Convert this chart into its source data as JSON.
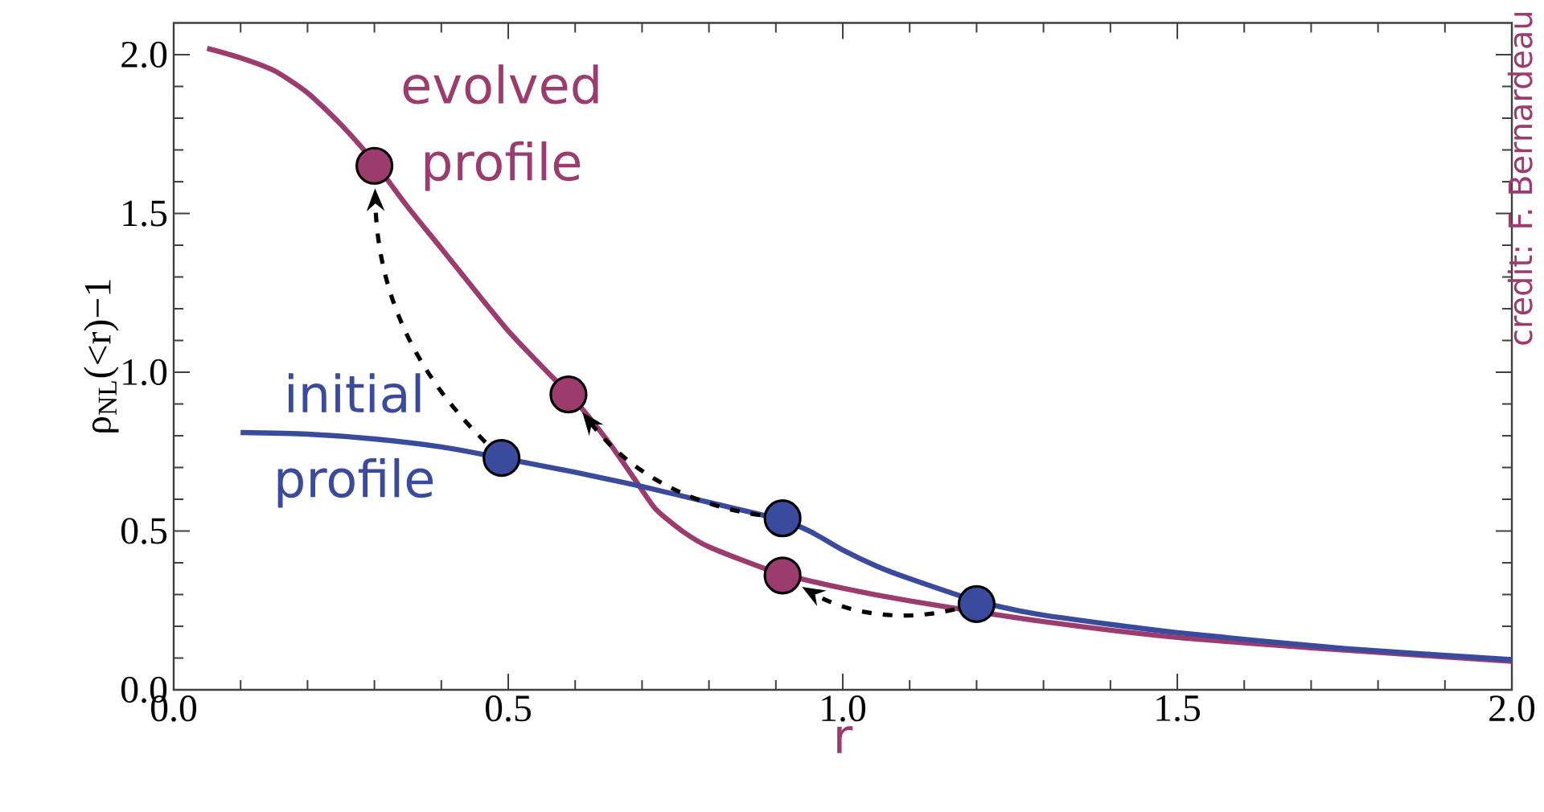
{
  "chart_data": {
    "type": "line",
    "ylabel": "ρ$_{NL}$(<r)−1",
    "xlabel": "r",
    "xlim": [
      0,
      2
    ],
    "ylim": [
      0,
      2.1
    ],
    "xticks": [
      {
        "value": 0,
        "label": "0.0"
      },
      {
        "value": 0.5,
        "label": "0.5"
      },
      {
        "value": 1,
        "label": "1.0"
      },
      {
        "value": 1.5,
        "label": "1.5"
      },
      {
        "value": 2,
        "label": "2.0"
      }
    ],
    "yticks": [
      {
        "value": 0,
        "label": "0.0"
      },
      {
        "value": 0.5,
        "label": "0.5"
      },
      {
        "value": 1,
        "label": "1.0"
      },
      {
        "value": 1.5,
        "label": "1.5"
      },
      {
        "value": 2,
        "label": "2.0"
      }
    ],
    "annotations": [
      "credit: F. Bernardeau"
    ],
    "series": [
      {
        "name": "evolved profile",
        "color": "#9b3b6e",
        "marker": "none",
        "x": [
          0.05,
          0.1,
          0.15,
          0.2,
          0.25,
          0.3,
          0.35,
          0.4,
          0.5,
          0.6,
          0.65,
          0.69,
          0.72,
          0.76,
          0.8,
          0.9,
          1.0,
          1.1,
          1.3,
          1.5,
          1.75,
          2.0
        ],
        "values": [
          2.02,
          1.99,
          1.95,
          1.88,
          1.78,
          1.66,
          1.52,
          1.39,
          1.13,
          0.91,
          0.78,
          0.66,
          0.57,
          0.5,
          0.45,
          0.37,
          0.32,
          0.28,
          0.215,
          0.165,
          0.125,
          0.09
        ]
      },
      {
        "name": "initial profile",
        "color": "#3a4a9c",
        "marker": "none",
        "x": [
          0.1,
          0.2,
          0.3,
          0.4,
          0.49,
          0.6,
          0.7,
          0.8,
          0.9,
          0.95,
          1.0,
          1.05,
          1.1,
          1.2,
          1.3,
          1.5,
          1.75,
          2.0
        ],
        "values": [
          0.81,
          0.805,
          0.79,
          0.765,
          0.73,
          0.685,
          0.64,
          0.59,
          0.54,
          0.5,
          0.44,
          0.39,
          0.35,
          0.28,
          0.235,
          0.18,
          0.13,
          0.095
        ]
      },
      {
        "type": "scatter",
        "color": "#9b3b6e",
        "marker": "circle",
        "x": [
          0.3,
          0.59,
          0.91
        ],
        "values": [
          1.65,
          0.93,
          0.36
        ]
      },
      {
        "type": "scatter",
        "color": "#3a4a9c",
        "marker": "circle",
        "x": [
          0.49,
          0.91,
          1.2
        ],
        "values": [
          0.73,
          0.54,
          0.27
        ]
      }
    ]
  }
}
